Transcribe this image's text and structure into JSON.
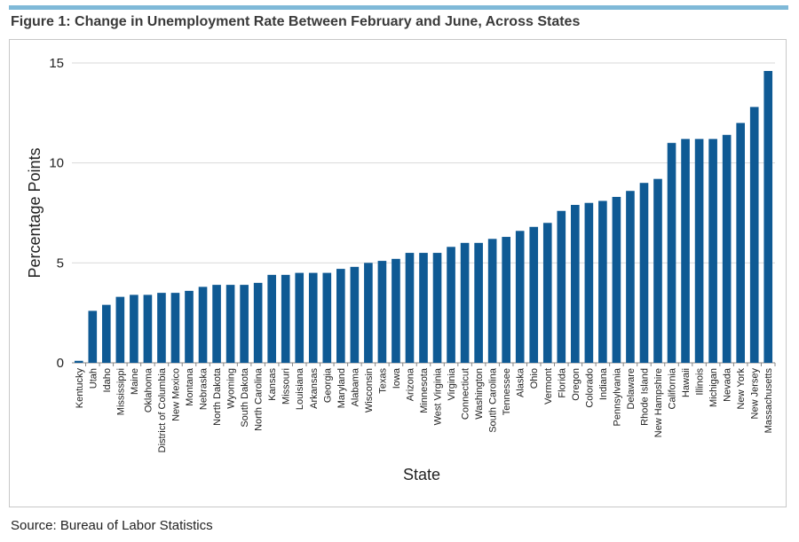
{
  "figure": {
    "title": "Figure 1: Change in Unemployment Rate Between February and June, Across States",
    "source": "Source: Bureau of Labor Statistics"
  },
  "colors": {
    "bar": "#0f5a94",
    "grid": "#d9d9d9",
    "axis": "#888888",
    "rule": "#7fb9d8"
  },
  "chart_data": {
    "type": "bar",
    "title": "",
    "xlabel": "State",
    "ylabel": "Percentage Points",
    "ylim": [
      0,
      15
    ],
    "yticks": [
      0,
      5,
      10,
      15
    ],
    "grid": true,
    "categories": [
      "Kentucky",
      "Utah",
      "Idaho",
      "Mississippi",
      "Maine",
      "Oklahoma",
      "District of Columbia",
      "New Mexico",
      "Montana",
      "Nebraska",
      "North Dakota",
      "Wyoming",
      "South Dakota",
      "North Carolina",
      "Kansas",
      "Missouri",
      "Louisiana",
      "Arkansas",
      "Georgia",
      "Maryland",
      "Alabama",
      "Wisconsin",
      "Texas",
      "Iowa",
      "Arizona",
      "Minnesota",
      "West Virginia",
      "Virginia",
      "Connecticut",
      "Washington",
      "South Carolina",
      "Tennessee",
      "Alaska",
      "Ohio",
      "Vermont",
      "Florida",
      "Oregon",
      "Colorado",
      "Indiana",
      "Pennsylvania",
      "Delaware",
      "Rhode Island",
      "New Hampshire",
      "California",
      "Hawaii",
      "Illinois",
      "Michigan",
      "Nevada",
      "New York",
      "New Jersey",
      "Massachusetts"
    ],
    "values": [
      0.1,
      2.6,
      2.9,
      3.3,
      3.4,
      3.4,
      3.5,
      3.5,
      3.6,
      3.8,
      3.9,
      3.9,
      3.9,
      4.0,
      4.4,
      4.4,
      4.5,
      4.5,
      4.5,
      4.7,
      4.8,
      5.0,
      5.1,
      5.2,
      5.5,
      5.5,
      5.5,
      5.8,
      6.0,
      6.0,
      6.2,
      6.3,
      6.6,
      6.8,
      7.0,
      7.6,
      7.9,
      8.0,
      8.1,
      8.3,
      8.6,
      9.0,
      9.2,
      11.0,
      11.2,
      11.2,
      11.2,
      11.4,
      12.0,
      12.8,
      14.6
    ]
  }
}
